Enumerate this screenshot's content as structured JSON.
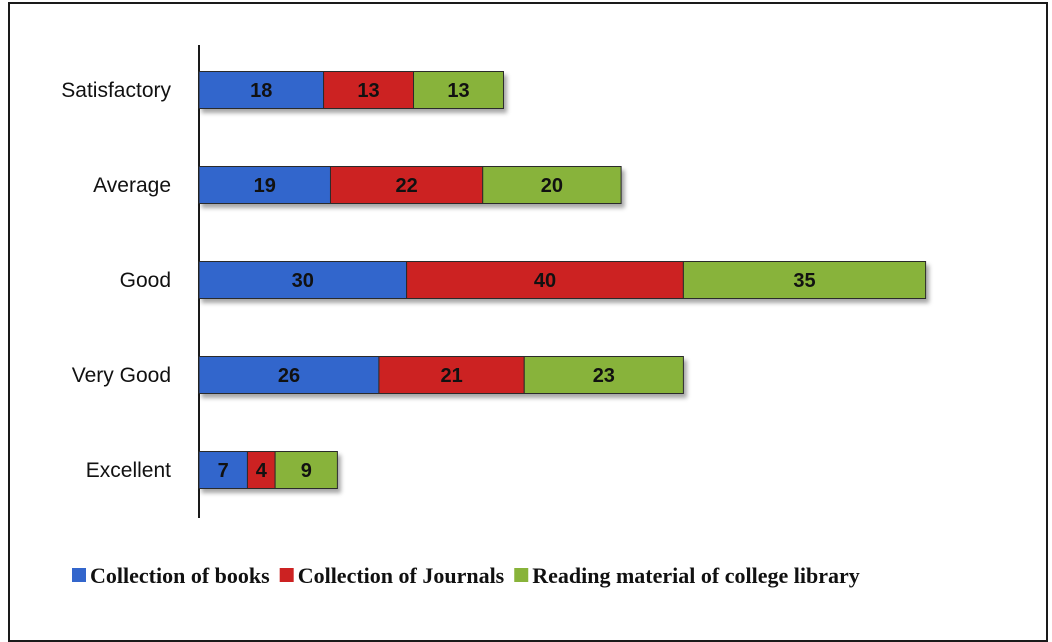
{
  "chart_data": {
    "type": "bar",
    "orientation": "horizontal",
    "stacked": true,
    "categories": [
      "Excellent",
      "Very Good",
      "Good",
      "Average",
      "Satisfactory"
    ],
    "series": [
      {
        "name": "Collection of books",
        "values": [
          7,
          26,
          30,
          19,
          18
        ],
        "color": "#3366CC"
      },
      {
        "name": "Collection of Journals",
        "values": [
          4,
          21,
          40,
          22,
          13
        ],
        "color": "#CC2222"
      },
      {
        "name": "Reading material of college library",
        "values": [
          9,
          23,
          35,
          20,
          13
        ],
        "color": "#88B33A"
      }
    ],
    "title": "",
    "xlabel": "",
    "ylabel": "",
    "xlim": [
      0,
      105
    ],
    "grid": false,
    "legend_position": "bottom"
  }
}
